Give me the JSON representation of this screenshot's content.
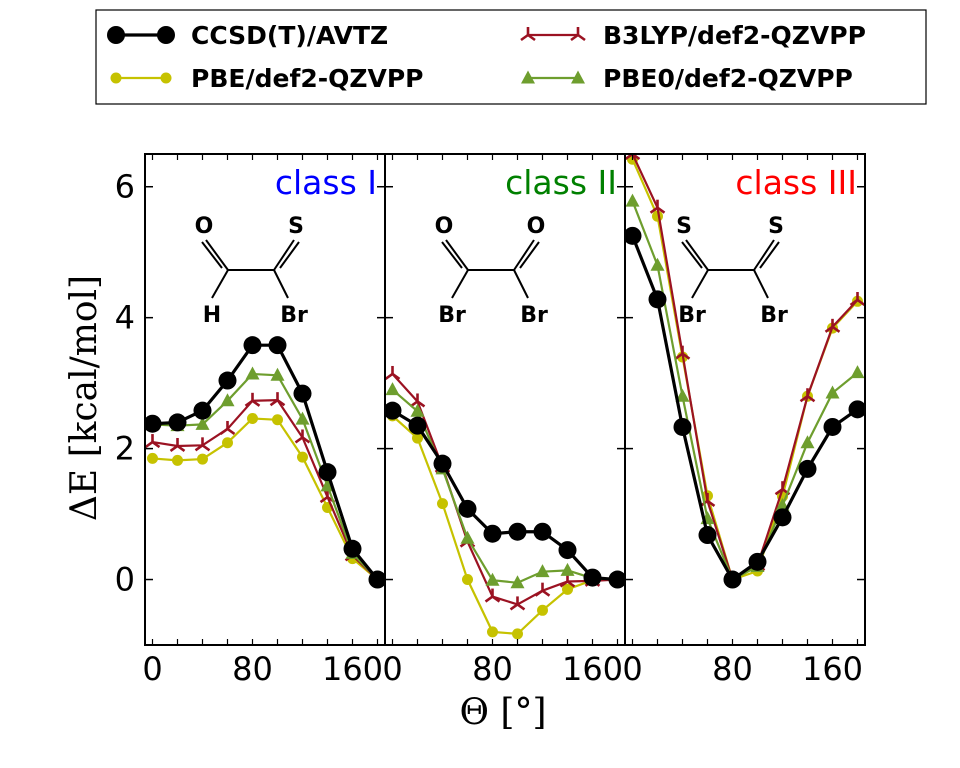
{
  "chart_data": {
    "type": "line",
    "ylabel": "ΔE [kcal/mol]",
    "xlabel": "Θ [°]",
    "ylim": [
      -1.0,
      6.5
    ],
    "xlim": [
      -6,
      186
    ],
    "y_ticks": [
      0,
      2,
      4,
      6
    ],
    "y_tick_labels": [
      "0",
      "2",
      "4",
      "6"
    ],
    "x_tick_labels": [
      [
        "0",
        "80",
        "160"
      ],
      [
        "0",
        "80",
        "160"
      ],
      [
        "0",
        "80",
        "160"
      ]
    ],
    "legend": [
      {
        "name": "CCSD(T)/AVTZ",
        "color": "#000000",
        "marker": "circle-big"
      },
      {
        "name": "B3LYP/def2-QZVPP",
        "color": "#9b1222",
        "marker": "tri-down"
      },
      {
        "name": "PBE/def2-QZVPP",
        "color": "#c6c200",
        "marker": "circle-small"
      },
      {
        "name": "PBE0/def2-QZVPP",
        "color": "#6e9e2e",
        "marker": "triangle"
      }
    ],
    "panels": [
      {
        "title": "class I",
        "title_color": "#0000ff",
        "molecule": {
          "top_left": "O",
          "top_right": "S",
          "bottom_left": "H",
          "bottom_right": "Br"
        },
        "x": [
          0,
          20,
          40,
          60,
          80,
          100,
          120,
          140,
          160,
          180
        ],
        "series": [
          {
            "name": "CCSD(T)/AVTZ",
            "values": [
              2.38,
              2.4,
              2.58,
              3.04,
              3.58,
              3.58,
              2.84,
              1.64,
              0.47,
              0.0
            ]
          },
          {
            "name": "PBE0/def2-QZVPP",
            "values": [
              2.37,
              2.35,
              2.37,
              2.73,
              3.14,
              3.12,
              2.45,
              1.43,
              0.4,
              0.0
            ]
          },
          {
            "name": "B3LYP/def2-QZVPP",
            "values": [
              2.1,
              2.04,
              2.05,
              2.3,
              2.73,
              2.74,
              2.17,
              1.26,
              0.37,
              0.0
            ]
          },
          {
            "name": "PBE/def2-QZVPP",
            "values": [
              1.85,
              1.82,
              1.84,
              2.09,
              2.46,
              2.44,
              1.87,
              1.1,
              0.32,
              0.0
            ]
          }
        ]
      },
      {
        "title": "class II",
        "title_color": "#008000",
        "molecule": {
          "top_left": "O",
          "top_right": "O",
          "bottom_left": "Br",
          "bottom_right": "Br"
        },
        "x": [
          0,
          20,
          40,
          60,
          80,
          100,
          120,
          140,
          160,
          180
        ],
        "series": [
          {
            "name": "CCSD(T)/AVTZ",
            "values": [
              2.58,
              2.35,
              1.77,
              1.08,
              0.7,
              0.73,
              0.73,
              0.45,
              0.03,
              0.0
            ]
          },
          {
            "name": "PBE0/def2-QZVPP",
            "values": [
              2.9,
              2.57,
              1.69,
              0.63,
              -0.01,
              -0.05,
              0.12,
              0.14,
              0.02,
              0.0
            ]
          },
          {
            "name": "B3LYP/def2-QZVPP",
            "values": [
              3.14,
              2.72,
              1.72,
              0.58,
              -0.26,
              -0.38,
              -0.17,
              -0.03,
              -0.02,
              0.0
            ]
          },
          {
            "name": "PBE/def2-QZVPP",
            "values": [
              2.5,
              2.16,
              1.16,
              0.0,
              -0.8,
              -0.83,
              -0.47,
              -0.15,
              -0.01,
              0.0
            ]
          }
        ]
      },
      {
        "title": "class III",
        "title_color": "#ff0000",
        "molecule": {
          "top_left": "S",
          "top_right": "S",
          "bottom_left": "Br",
          "bottom_right": "Br"
        },
        "x": [
          0,
          20,
          40,
          60,
          80,
          100,
          120,
          140,
          160,
          180
        ],
        "series": [
          {
            "name": "CCSD(T)/AVTZ",
            "values": [
              5.25,
              4.28,
              2.33,
              0.68,
              0.0,
              0.27,
              0.95,
              1.69,
              2.33,
              2.6
            ]
          },
          {
            "name": "PBE0/def2-QZVPP",
            "values": [
              5.78,
              4.8,
              2.8,
              0.93,
              0.0,
              0.2,
              1.13,
              2.09,
              2.85,
              3.16
            ]
          },
          {
            "name": "B3LYP/def2-QZVPP",
            "values": [
              6.5,
              5.68,
              3.45,
              1.2,
              0.0,
              0.22,
              1.38,
              2.8,
              3.86,
              4.27
            ]
          },
          {
            "name": "PBE/def2-QZVPP",
            "values": [
              6.42,
              5.55,
              3.4,
              1.28,
              0.0,
              0.13,
              1.27,
              2.8,
              3.84,
              4.25
            ]
          }
        ]
      }
    ]
  }
}
